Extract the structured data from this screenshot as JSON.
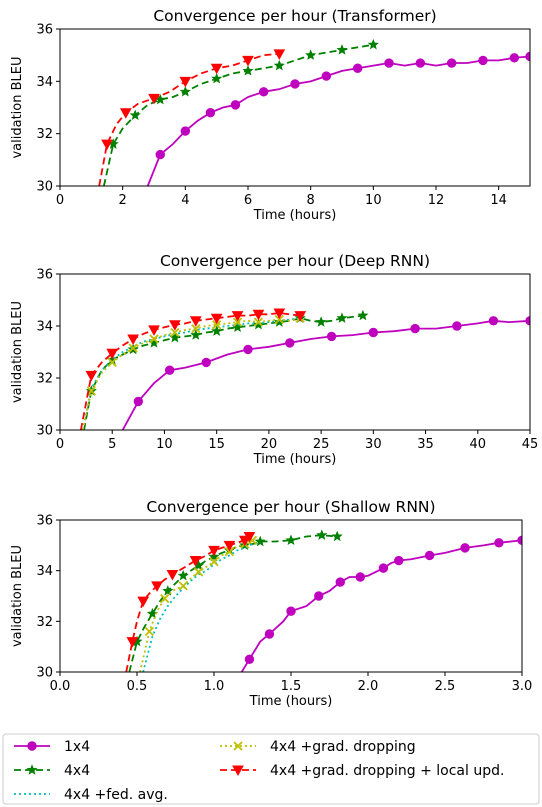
{
  "chart_data": [
    {
      "type": "line",
      "title": "Convergence per hour (Transformer)",
      "xlabel": "Time (hours)",
      "ylabel": "validation BLEU",
      "xlim": [
        0,
        15
      ],
      "ylim": [
        30,
        36
      ],
      "xticks": [
        "0",
        "2",
        "4",
        "6",
        "8",
        "10",
        "12",
        "14"
      ],
      "yticks": [
        "30",
        "32",
        "34",
        "36"
      ],
      "grid": false,
      "series": [
        {
          "name": "1x4",
          "x": [
            2.8,
            3.2,
            3.6,
            4.0,
            4.4,
            4.8,
            5.2,
            5.6,
            6.0,
            6.5,
            7.0,
            7.5,
            8.0,
            8.5,
            9.0,
            9.5,
            10.0,
            10.5,
            11.0,
            11.5,
            12.0,
            12.5,
            13.0,
            13.5,
            14.0,
            14.5,
            15.0
          ],
          "y": [
            30.0,
            31.2,
            31.6,
            32.1,
            32.5,
            32.8,
            33.0,
            33.1,
            33.4,
            33.6,
            33.7,
            33.9,
            34.0,
            34.2,
            34.4,
            34.5,
            34.6,
            34.7,
            34.6,
            34.7,
            34.6,
            34.7,
            34.7,
            34.8,
            34.8,
            34.9,
            34.95
          ]
        },
        {
          "name": "4x4",
          "x": [
            1.4,
            1.7,
            2.0,
            2.4,
            2.8,
            3.2,
            3.6,
            4.0,
            4.5,
            5.0,
            5.5,
            6.0,
            6.5,
            7.0,
            7.5,
            8.0,
            8.5,
            9.0,
            9.5,
            10.0
          ],
          "y": [
            30.0,
            31.6,
            32.2,
            32.7,
            33.1,
            33.3,
            33.4,
            33.6,
            33.9,
            34.1,
            34.3,
            34.4,
            34.5,
            34.6,
            34.8,
            35.0,
            35.1,
            35.2,
            35.3,
            35.4
          ]
        },
        {
          "name": "4x4 +grad. dropping + local upd.",
          "x": [
            1.25,
            1.5,
            1.8,
            2.1,
            2.5,
            3.0,
            3.5,
            4.0,
            4.5,
            5.0,
            5.5,
            6.0,
            6.5,
            7.0
          ],
          "y": [
            30.0,
            31.6,
            32.35,
            32.8,
            33.15,
            33.35,
            33.6,
            34.0,
            34.3,
            34.5,
            34.6,
            34.8,
            35.0,
            35.05
          ]
        }
      ]
    },
    {
      "type": "line",
      "title": "Convergence per hour (Deep RNN)",
      "xlabel": "Time (hours)",
      "ylabel": "validation BLEU",
      "xlim": [
        0,
        45
      ],
      "ylim": [
        30,
        36
      ],
      "xticks": [
        "0",
        "5",
        "10",
        "15",
        "20",
        "25",
        "30",
        "35",
        "40",
        "45"
      ],
      "yticks": [
        "30",
        "32",
        "34",
        "36"
      ],
      "grid": false,
      "series": [
        {
          "name": "1x4",
          "x": [
            6,
            7.5,
            9,
            10.5,
            12,
            14,
            16,
            18,
            20,
            22,
            24,
            26,
            28,
            30,
            32,
            34,
            36,
            38,
            40,
            41.5,
            43,
            45
          ],
          "y": [
            30.0,
            31.1,
            31.8,
            32.3,
            32.4,
            32.6,
            32.9,
            33.1,
            33.2,
            33.35,
            33.5,
            33.6,
            33.65,
            33.75,
            33.8,
            33.9,
            33.9,
            34.0,
            34.1,
            34.2,
            34.15,
            34.2
          ]
        },
        {
          "name": "4x4",
          "x": [
            2.3,
            3.0,
            4.0,
            5.0,
            6.0,
            7.0,
            8.0,
            9.0,
            10.0,
            11.0,
            12.0,
            13.0,
            14.0,
            15.0,
            16.0,
            17.0,
            18.0,
            19.0,
            20.0,
            21.0,
            22.0,
            23.0,
            24.0,
            25.0,
            26.0,
            27.0,
            28.0,
            29.0
          ],
          "y": [
            30.0,
            31.5,
            32.3,
            32.7,
            32.9,
            33.1,
            33.25,
            33.35,
            33.45,
            33.55,
            33.6,
            33.65,
            33.75,
            33.8,
            33.9,
            33.95,
            34.0,
            34.05,
            34.1,
            34.15,
            34.2,
            34.3,
            34.2,
            34.15,
            34.2,
            34.3,
            34.35,
            34.4
          ]
        },
        {
          "name": "4x4 +fed. avg.",
          "x": [
            2.2,
            3.0,
            4.0,
            5.0,
            6.0,
            7.0,
            8.0,
            9.0,
            10.0,
            11.0,
            12.0,
            13.0,
            14.0,
            15.0,
            16.0,
            17.0,
            18.0,
            19.0,
            20.0,
            21.0,
            22.0,
            23.0
          ],
          "y": [
            30.0,
            31.6,
            32.3,
            32.7,
            33.0,
            33.2,
            33.4,
            33.5,
            33.6,
            33.7,
            33.75,
            33.85,
            33.9,
            33.95,
            34.0,
            34.05,
            34.1,
            34.1,
            34.15,
            34.2,
            34.25,
            34.3
          ]
        },
        {
          "name": "4x4 +grad. dropping",
          "x": [
            2.2,
            3.0,
            4.0,
            5.0,
            6.0,
            7.0,
            8.0,
            9.0,
            10.0,
            11.0,
            12.0,
            13.0,
            14.0,
            15.0,
            16.0,
            17.0,
            18.0,
            19.0,
            20.0,
            21.0,
            22.0,
            23.0
          ],
          "y": [
            30.0,
            31.5,
            32.2,
            32.6,
            32.9,
            33.15,
            33.35,
            33.5,
            33.65,
            33.75,
            33.85,
            33.9,
            34.0,
            34.05,
            34.1,
            34.15,
            34.2,
            34.15,
            34.2,
            34.25,
            34.2,
            34.3
          ]
        },
        {
          "name": "4x4 +grad. dropping + local upd.",
          "x": [
            2.0,
            3.0,
            4.0,
            5.0,
            6.0,
            7.0,
            8.0,
            9.0,
            10.0,
            11.0,
            12.0,
            13.0,
            14.0,
            15.0,
            16.0,
            17.0,
            18.0,
            19.0,
            20.0,
            21.0,
            22.0,
            23.0
          ],
          "y": [
            30.0,
            32.1,
            32.6,
            32.95,
            33.25,
            33.5,
            33.7,
            33.85,
            33.95,
            34.05,
            34.1,
            34.2,
            34.25,
            34.3,
            34.35,
            34.4,
            34.4,
            34.45,
            34.45,
            34.5,
            34.45,
            34.4
          ]
        }
      ]
    },
    {
      "type": "line",
      "title": "Convergence per hour (Shallow RNN)",
      "xlabel": "Time (hours)",
      "ylabel": "validation BLEU",
      "xlim": [
        0,
        3
      ],
      "ylim": [
        30,
        36
      ],
      "xticks": [
        "0.0",
        "0.5",
        "1.0",
        "1.5",
        "2.0",
        "2.5",
        "3.0"
      ],
      "yticks": [
        "30",
        "32",
        "34",
        "36"
      ],
      "grid": false,
      "series": [
        {
          "name": "1x4",
          "x": [
            1.18,
            1.23,
            1.3,
            1.36,
            1.45,
            1.5,
            1.6,
            1.68,
            1.75,
            1.82,
            1.88,
            1.95,
            2.0,
            2.1,
            2.15,
            2.2,
            2.28,
            2.4,
            2.5,
            2.63,
            2.75,
            2.85,
            3.0
          ],
          "y": [
            30.0,
            30.5,
            31.2,
            31.5,
            32.0,
            32.4,
            32.6,
            33.0,
            33.2,
            33.55,
            33.75,
            33.75,
            33.8,
            34.1,
            34.3,
            34.4,
            34.45,
            34.6,
            34.7,
            34.9,
            35.0,
            35.1,
            35.2
          ]
        },
        {
          "name": "4x4",
          "x": [
            0.45,
            0.5,
            0.55,
            0.6,
            0.65,
            0.7,
            0.75,
            0.8,
            0.85,
            0.9,
            0.95,
            1.0,
            1.05,
            1.1,
            1.15,
            1.2,
            1.25,
            1.3,
            1.4,
            1.5,
            1.6,
            1.7,
            1.8
          ],
          "y": [
            30.0,
            31.2,
            31.8,
            32.3,
            32.8,
            33.2,
            33.5,
            33.8,
            34.0,
            34.2,
            34.4,
            34.55,
            34.7,
            34.8,
            34.95,
            35.0,
            35.05,
            35.15,
            35.15,
            35.2,
            35.35,
            35.4,
            35.35
          ]
        },
        {
          "name": "4x4 +fed. avg.",
          "x": [
            0.54,
            0.6,
            0.65,
            0.7,
            0.75,
            0.8,
            0.85,
            0.9,
            0.95,
            1.0,
            1.05,
            1.1,
            1.15,
            1.2,
            1.25,
            1.3
          ],
          "y": [
            30.0,
            31.4,
            32.1,
            32.6,
            33.0,
            33.3,
            33.6,
            33.85,
            34.0,
            34.25,
            34.45,
            34.6,
            34.8,
            34.9,
            35.05,
            35.1
          ]
        },
        {
          "name": "4x4 +grad. dropping",
          "x": [
            0.52,
            0.58,
            0.63,
            0.68,
            0.73,
            0.8,
            0.85,
            0.9,
            0.95,
            1.0,
            1.05,
            1.1,
            1.15,
            1.2,
            1.25
          ],
          "y": [
            30.0,
            31.6,
            32.4,
            32.9,
            33.2,
            33.4,
            33.7,
            33.95,
            34.15,
            34.35,
            34.6,
            34.75,
            34.95,
            35.05,
            35.2
          ]
        },
        {
          "name": "4x4 +grad. dropping + local upd.",
          "x": [
            0.43,
            0.47,
            0.5,
            0.54,
            0.58,
            0.63,
            0.68,
            0.73,
            0.8,
            0.88,
            0.95,
            1.0,
            1.05,
            1.1,
            1.15,
            1.2,
            1.23
          ],
          "y": [
            30.0,
            31.2,
            32.0,
            32.8,
            33.1,
            33.4,
            33.65,
            33.85,
            34.1,
            34.4,
            34.6,
            34.8,
            34.9,
            35.0,
            35.1,
            35.2,
            35.35
          ]
        }
      ]
    }
  ],
  "legend": {
    "placement": "bottom",
    "entries": [
      {
        "label": "1x4",
        "color": "#bf00bf",
        "dash": "solid",
        "marker": "circle"
      },
      {
        "label": "4x4 +grad. dropping",
        "color": "#bfbf00",
        "dash": "dotted",
        "marker": "x"
      },
      {
        "label": "4x4",
        "color": "#008000",
        "dash": "dashed",
        "marker": "star"
      },
      {
        "label": "4x4 +grad. dropping + local upd.",
        "color": "#ff0000",
        "dash": "dashed",
        "marker": "triangle-down"
      },
      {
        "label": "4x4 +fed. avg.",
        "color": "#00bfbf",
        "dash": "dotted",
        "marker": "none"
      }
    ]
  }
}
